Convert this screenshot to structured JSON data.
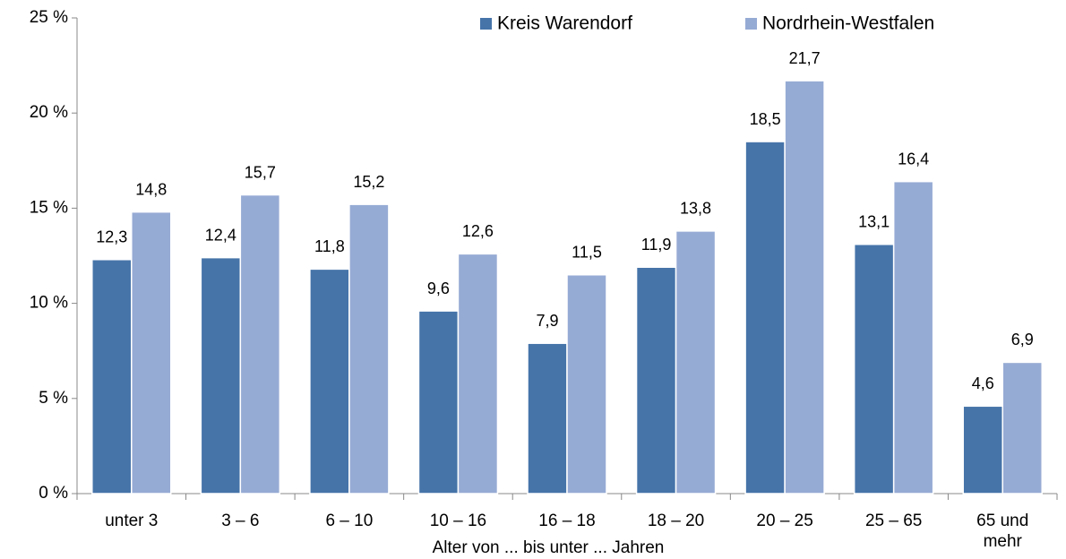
{
  "chart_data": {
    "type": "bar",
    "x_label": "Alter von ... bis unter ... Jahren",
    "categories": [
      "unter 3",
      "3 – 6",
      "6 – 10",
      "10 – 16",
      "16 – 18",
      "18 – 20",
      "20 – 25",
      "25 – 65",
      "65 und mehr"
    ],
    "series": [
      {
        "name": "Kreis Warendorf",
        "color": "#4674a9",
        "values": [
          12.3,
          12.4,
          11.8,
          9.6,
          7.9,
          11.9,
          18.5,
          13.1,
          4.6
        ],
        "value_labels": [
          "12,3",
          "12,4",
          "11,8",
          "9,6",
          "7,9",
          "11,9",
          "18,5",
          "13,1",
          "4,6"
        ]
      },
      {
        "name": "Nordrhein-Westfalen",
        "color": "#96abd4",
        "values": [
          14.8,
          15.7,
          15.2,
          12.6,
          11.5,
          13.8,
          21.7,
          16.4,
          6.9
        ],
        "value_labels": [
          "14,8",
          "15,7",
          "15,2",
          "12,6",
          "11,5",
          "13,8",
          "21,7",
          "16,4",
          "6,9"
        ]
      }
    ],
    "ylim": [
      0,
      25
    ],
    "yticks": [
      {
        "value": 0,
        "label": "0 %"
      },
      {
        "value": 5,
        "label": "5 %"
      },
      {
        "value": 10,
        "label": "10 %"
      },
      {
        "value": 15,
        "label": "15 %"
      },
      {
        "value": 20,
        "label": "20 %"
      },
      {
        "value": 25,
        "label": "25 %"
      }
    ],
    "legend": "top-right"
  }
}
